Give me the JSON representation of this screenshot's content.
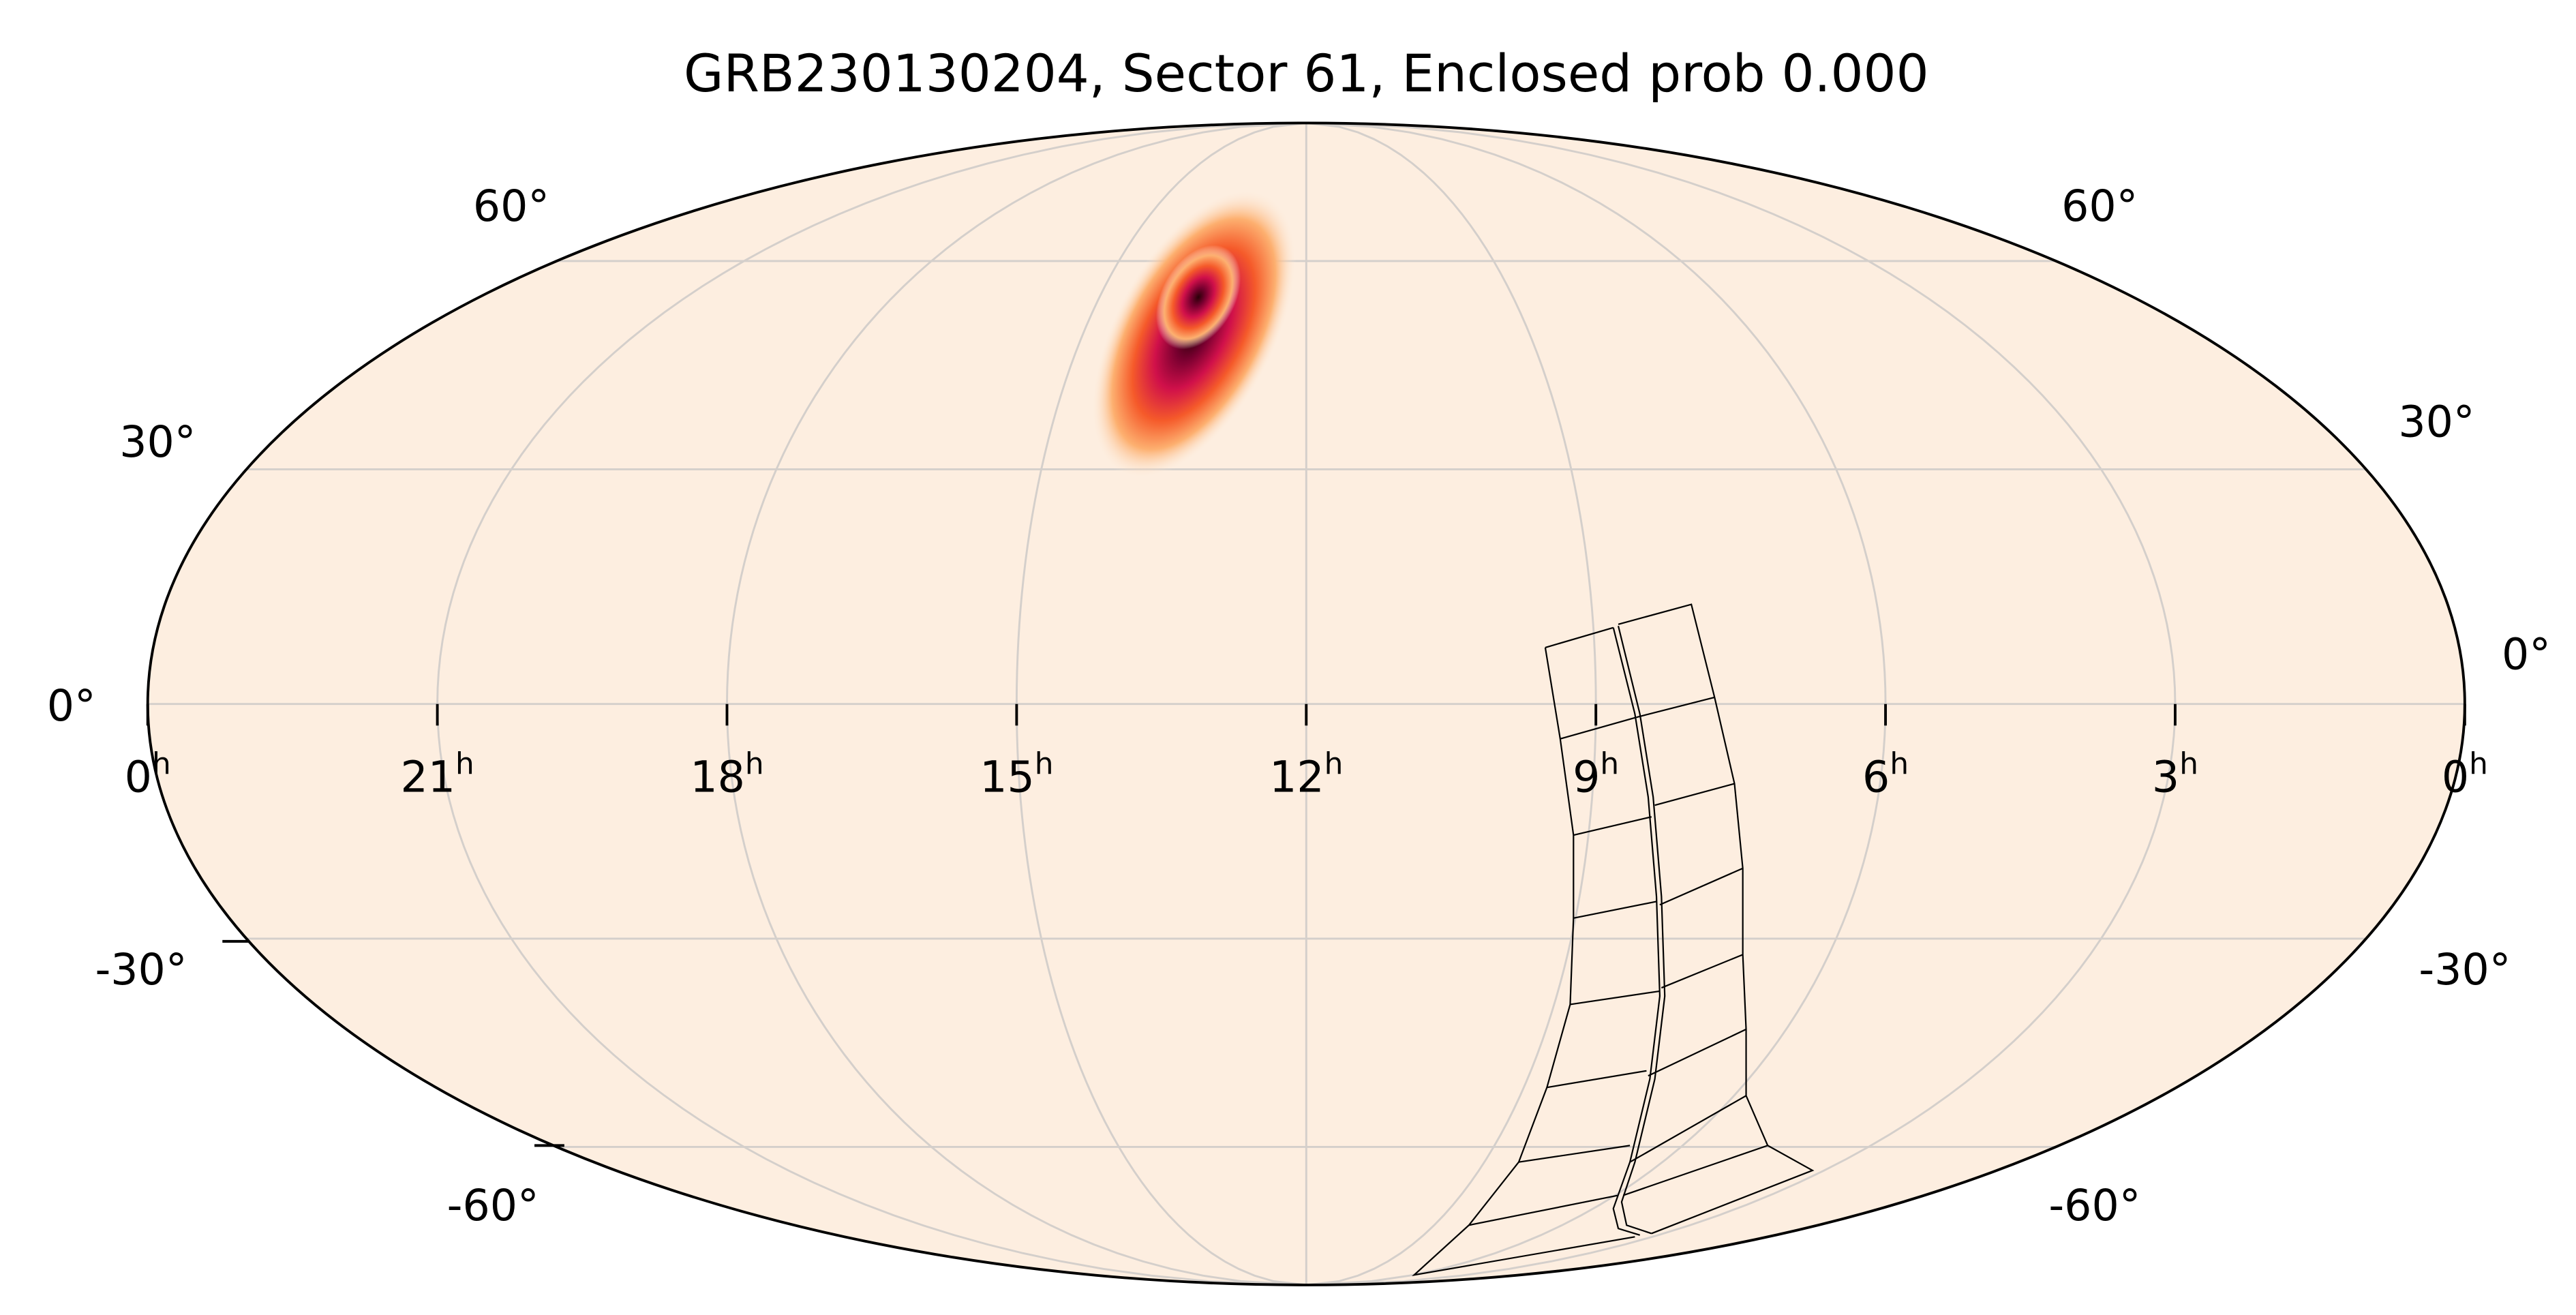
{
  "chart_data": {
    "type": "heatmap",
    "projection": "mollweide",
    "title": "GRB230130204, Sector 61, Enclosed prob 0.000",
    "colormap": "sequential light peach to dark red/black",
    "background_color": "#fdeee0",
    "grid": true,
    "ra_tick_labels": [
      "0",
      "21",
      "18",
      "15",
      "12",
      "9",
      "6",
      "3",
      "0"
    ],
    "ra_unit_superscript": "h",
    "dec_tick_labels_left": [
      "60°",
      "30°",
      "0°",
      "-30°",
      "-60°"
    ],
    "dec_tick_labels_right": [
      "60°",
      "30°",
      "0°",
      "-30°",
      "-60°"
    ],
    "probability_peak": {
      "ra_hours": 13.6,
      "dec_deg": 55
    },
    "footprint": "TESS sector camera/CCD outlines, RA ~6h-9h, Dec ~+5° to -80°"
  }
}
